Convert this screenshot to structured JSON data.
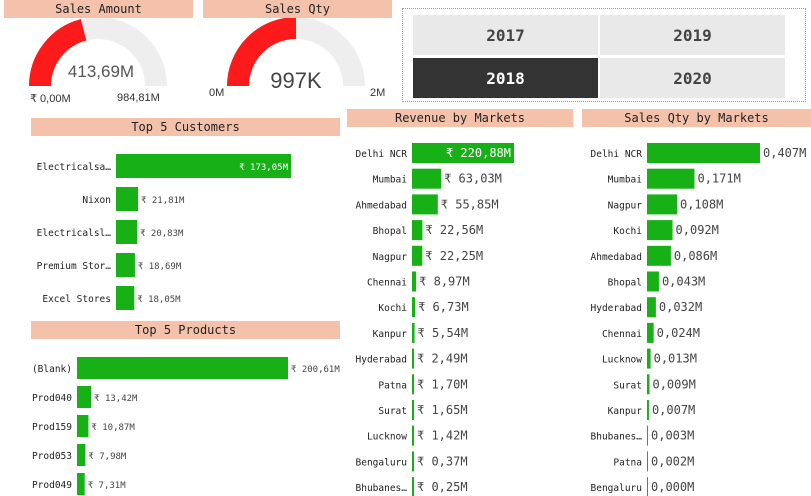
{
  "colors": {
    "accent": "#fd1a1a",
    "bar": "#17b117",
    "header": "#f4c2ab",
    "track": "#eeeeee"
  },
  "sales_amount": {
    "title": "Sales Amount",
    "value_label": "413,69M",
    "min_label": "₹ 0,00M",
    "max_label": "984,81M",
    "fraction": 0.42
  },
  "sales_qty": {
    "title": "Sales Qty",
    "value_label": "997K",
    "min_label": "0M",
    "max_label": "2M",
    "fraction": 0.5
  },
  "year_slicer": {
    "years": [
      "2017",
      "2019",
      "2018",
      "2020"
    ],
    "selected": "2018"
  },
  "chart_data": [
    {
      "type": "bar",
      "title": "Top 5 Customers",
      "categories": [
        "Electricalsa…",
        "Nixon",
        "Electricalsl…",
        "Premium Stor…",
        "Excel Stores"
      ],
      "values": [
        173.05,
        21.81,
        20.83,
        18.69,
        18.05
      ],
      "labels": [
        "₹ 173,05M",
        "₹ 21,81M",
        "₹ 20,83M",
        "₹ 18,69M",
        "₹ 18,05M"
      ]
    },
    {
      "type": "bar",
      "title": "Top 5 Products",
      "categories": [
        "(Blank)",
        "Prod040",
        "Prod159",
        "Prod053",
        "Prod049"
      ],
      "values": [
        200.61,
        13.42,
        10.87,
        7.98,
        7.31
      ],
      "labels": [
        "₹ 200,61M",
        "₹ 13,42M",
        "₹ 10,87M",
        "₹ 7,98M",
        "₹ 7,31M"
      ]
    },
    {
      "type": "bar",
      "title": "Revenue by Markets",
      "categories": [
        "Delhi NCR",
        "Mumbai",
        "Ahmedabad",
        "Bhopal",
        "Nagpur",
        "Chennai",
        "Kochi",
        "Kanpur",
        "Hyderabad",
        "Patna",
        "Surat",
        "Lucknow",
        "Bengaluru",
        "Bhubanes…"
      ],
      "values": [
        220.88,
        63.03,
        55.85,
        22.56,
        22.25,
        8.97,
        6.73,
        5.54,
        2.49,
        1.7,
        1.65,
        1.42,
        0.37,
        0.25
      ],
      "labels": [
        "₹ 220,88M",
        "₹ 63,03M",
        "₹ 55,85M",
        "₹ 22,56M",
        "₹ 22,25M",
        "₹ 8,97M",
        "₹ 6,73M",
        "₹ 5,54M",
        "₹ 2,49M",
        "₹ 1,70M",
        "₹ 1,65M",
        "₹ 1,42M",
        "₹ 0,37M",
        "₹ 0,25M"
      ]
    },
    {
      "type": "bar",
      "title": "Sales Qty by Markets",
      "categories": [
        "Delhi NCR",
        "Mumbai",
        "Nagpur",
        "Kochi",
        "Ahmedabad",
        "Bhopal",
        "Hyderabad",
        "Chennai",
        "Lucknow",
        "Surat",
        "Kanpur",
        "Bhubanes…",
        "Patna",
        "Bengaluru"
      ],
      "values": [
        0.407,
        0.171,
        0.108,
        0.092,
        0.086,
        0.043,
        0.032,
        0.024,
        0.013,
        0.009,
        0.007,
        0.003,
        0.002,
        0.0
      ],
      "labels": [
        "0,407M",
        "0,171M",
        "0,108M",
        "0,092M",
        "0,086M",
        "0,043M",
        "0,032M",
        "0,024M",
        "0,013M",
        "0,009M",
        "0,007M",
        "0,003M",
        "0,002M",
        "0,000M"
      ]
    }
  ]
}
